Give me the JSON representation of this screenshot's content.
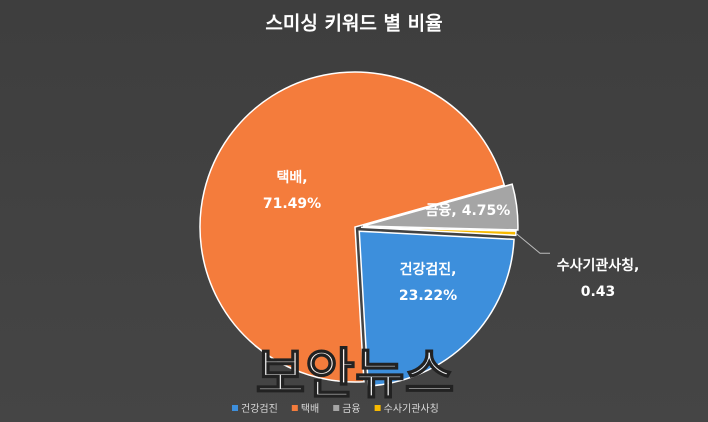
{
  "chart_data": {
    "type": "pie",
    "title": "스미싱 키워드 별 비율",
    "categories": [
      "건강검진",
      "택배",
      "금융",
      "수사기관사칭"
    ],
    "values": [
      23.22,
      71.49,
      4.75,
      0.43
    ],
    "value_labels": [
      "23.22%",
      "71.49%",
      "4.75%",
      "0.43"
    ],
    "label_separator": ",",
    "colors": [
      "#3d8fdc",
      "#f47c3c",
      "#a5a5a5",
      "#f7b900"
    ],
    "legend": "bottom"
  },
  "watermark": "보안뉴스"
}
